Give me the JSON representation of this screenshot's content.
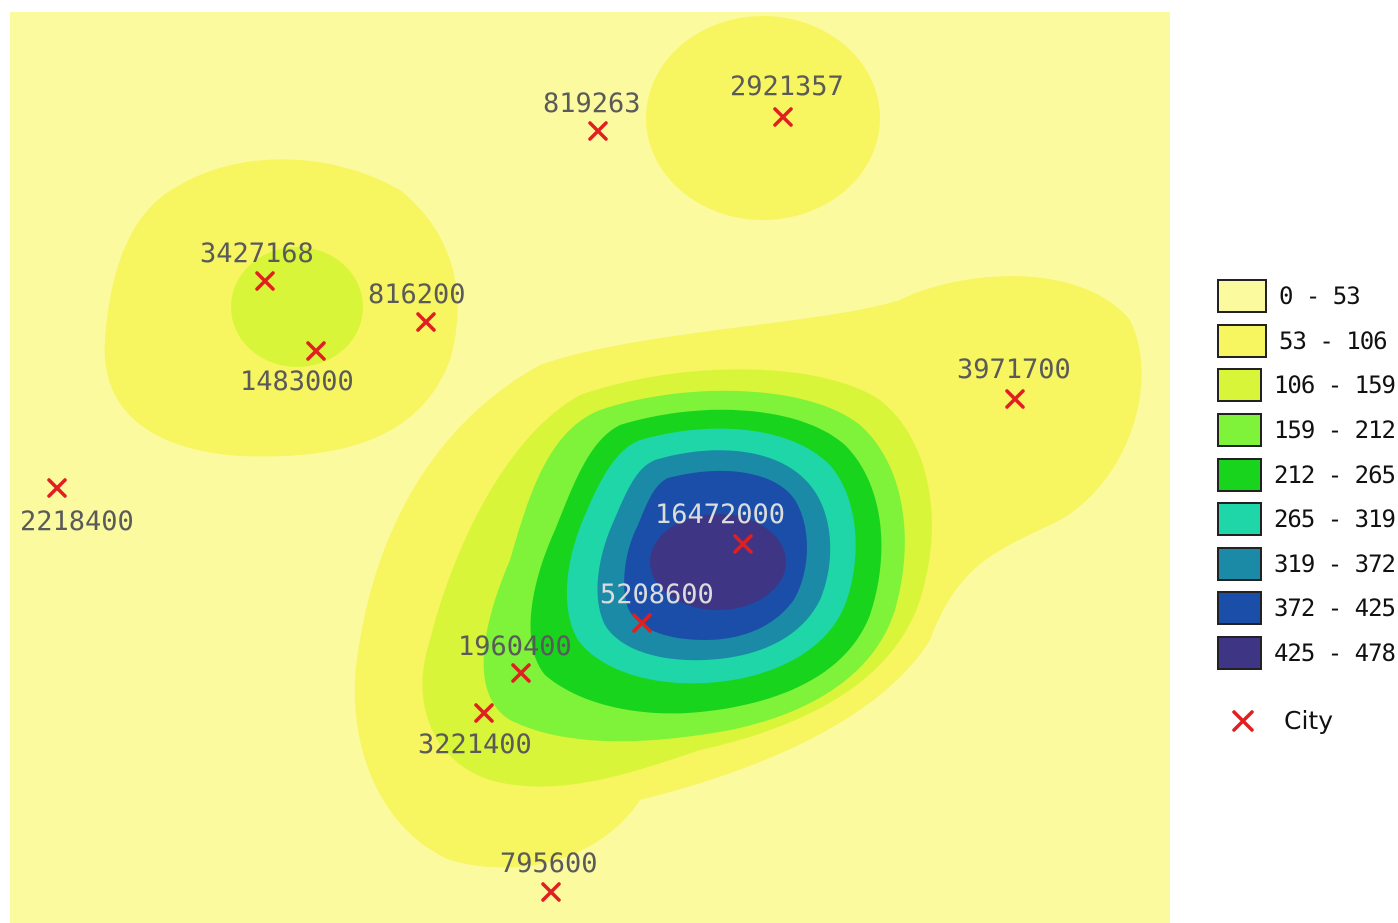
{
  "colors": {
    "background_map": "#fbfa9e",
    "class_0": "#fbfa9e",
    "class_1": "#f7f560",
    "class_2": "#d8f53a",
    "class_3": "#7ff23a",
    "class_4": "#19d41c",
    "class_5": "#1ed6a8",
    "class_6": "#1a8aa6",
    "class_7": "#1a4ea8",
    "class_8": "#3f3585",
    "city_marker": "#e02020"
  },
  "legend": {
    "classes": [
      {
        "label": "0 - 53",
        "color": "#fbfa9e"
      },
      {
        "label": "53 - 106",
        "color": "#f7f560"
      },
      {
        "label": "106 - 159",
        "color": "#d8f53a"
      },
      {
        "label": "159 - 212",
        "color": "#7ff23a"
      },
      {
        "label": "212 - 265",
        "color": "#19d41c"
      },
      {
        "label": "265 - 319",
        "color": "#1ed6a8"
      },
      {
        "label": "319 - 372",
        "color": "#1a8aa6"
      },
      {
        "label": "372 - 425",
        "color": "#1a4ea8"
      },
      {
        "label": "425 - 478",
        "color": "#3f3585"
      }
    ],
    "city_label": "City",
    "city_icon": "red-x-icon"
  },
  "cities": [
    {
      "label": "819263"
    },
    {
      "label": "2921357"
    },
    {
      "label": "3427168"
    },
    {
      "label": "816200"
    },
    {
      "label": "1483000"
    },
    {
      "label": "3971700"
    },
    {
      "label": "2218400"
    },
    {
      "label": "16472000"
    },
    {
      "label": "5208600"
    },
    {
      "label": "1960400"
    },
    {
      "label": "3221400"
    },
    {
      "label": "795600"
    }
  ]
}
